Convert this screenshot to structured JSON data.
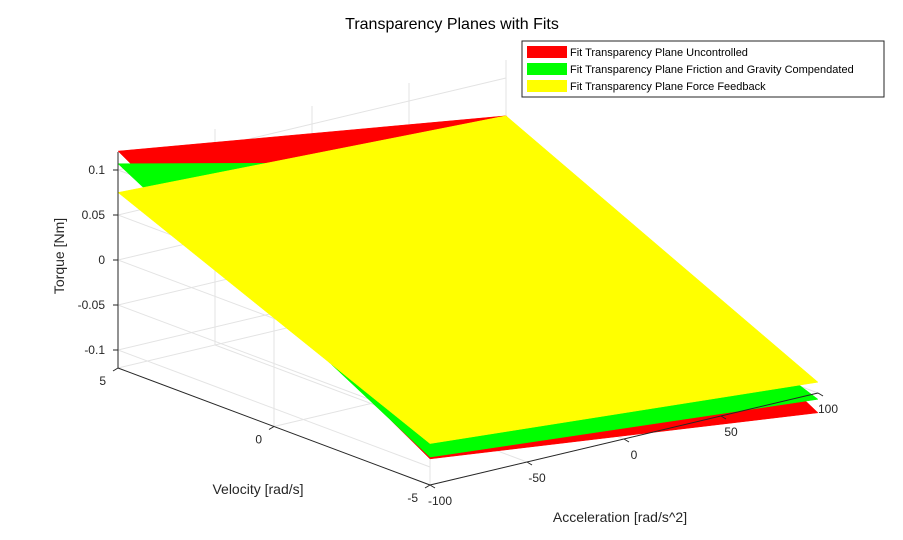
{
  "chart_data": {
    "type": "surface",
    "title": "Transparency Planes with Fits",
    "xlabel": "Acceleration [rad/s^2]",
    "ylabel": "Velocity [rad/s]",
    "zlabel": "Torque [Nm]",
    "xlim": [
      -100,
      100
    ],
    "ylim": [
      -5,
      5
    ],
    "zlim": [
      -0.12,
      0.12
    ],
    "xticks": [
      -100,
      -50,
      0,
      50,
      100
    ],
    "yticks": [
      -5,
      0,
      5
    ],
    "zticks": [
      -0.1,
      -0.05,
      0,
      0.05,
      0.1
    ],
    "xtick_labels": [
      "-100",
      "-50",
      "0",
      "50",
      "100"
    ],
    "ytick_labels": [
      "-5",
      "0",
      "5"
    ],
    "ztick_labels": [
      "-0.1",
      "-0.05",
      "0",
      "0.05",
      "0.1"
    ],
    "grid": true,
    "legend_position": "top-right",
    "series": [
      {
        "name": "Fit Transparency Plane Uncontrolled",
        "color": "#ff0000",
        "corners": [
          {
            "x": -100,
            "y": 5,
            "z": 0.121
          },
          {
            "x": 100,
            "y": 5,
            "z": 0.058
          },
          {
            "x": 100,
            "y": -5,
            "z": -0.142
          },
          {
            "x": -100,
            "y": -5,
            "z": -0.091
          }
        ]
      },
      {
        "name": "Fit Transparency Plane Friction and Gravity Compendated",
        "color": "#00ff00",
        "corners": [
          {
            "x": -100,
            "y": 5,
            "z": 0.107
          },
          {
            "x": 100,
            "y": 5,
            "z": 0.006
          },
          {
            "x": 100,
            "y": -5,
            "z": -0.127
          },
          {
            "x": -100,
            "y": -5,
            "z": -0.089
          }
        ]
      },
      {
        "name": "Fit Transparency Plane Force Feedback",
        "color": "#ffff00",
        "corners": [
          {
            "x": -100,
            "y": 5,
            "z": 0.075
          },
          {
            "x": 100,
            "y": 5,
            "z": 0.058
          },
          {
            "x": 100,
            "y": -5,
            "z": -0.108
          },
          {
            "x": -100,
            "y": -5,
            "z": -0.074
          }
        ]
      }
    ]
  }
}
